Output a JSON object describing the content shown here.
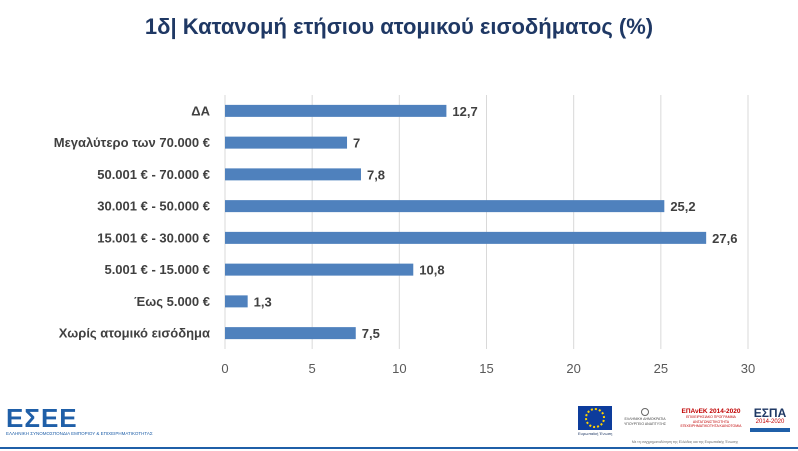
{
  "title": "1δ| Κατανομή ετήσιου ατομικού εισοδήματος (%)",
  "chart_data": {
    "type": "bar",
    "orientation": "horizontal",
    "categories": [
      "ΔΑ",
      "Μεγαλύτερο των 70.000 €",
      "50.001 € - 70.000 €",
      "30.001 € - 50.000 €",
      "15.001 € - 30.000 €",
      "5.001 € - 15.000 €",
      "Έως 5.000 €",
      "Χωρίς ατομικό εισόδημα"
    ],
    "values": [
      12.7,
      7,
      7.8,
      25.2,
      27.6,
      10.8,
      1.3,
      7.5
    ],
    "value_labels": [
      "12,7",
      "7",
      "7,8",
      "25,2",
      "27,6",
      "10,8",
      "1,3",
      "7,5"
    ],
    "xlim": [
      0,
      30
    ],
    "xticks": [
      "0",
      "5",
      "10",
      "15",
      "20",
      "25",
      "30"
    ],
    "grid": true,
    "bar_color": "#4f81bd"
  },
  "footer": {
    "logo": "ΕΣΕΕ",
    "logo_subtitle": "ΕΛΛΗΝΙΚΗ ΣΥΝΟΜΟΣΠΟΝΔΙΑ ΕΜΠΟΡΙΟΥ & ΕΠΙΧΕΙΡΗΜΑΤΙΚΟΤΗΤΑΣ",
    "eu_caption": "Ευρωπαϊκή Ένωση",
    "ministry": "ΕΛΛΗΝΙΚΗ ΔΗΜΟΚΡΑΤΙΑ ΥΠΟΥΡΓΕΙΟ ΑΝΑΠΤΥΞΗΣ",
    "epanek_title": "ΕΠΑνΕΚ 2014-2020",
    "epanek_sub": "ΕΠΙΧΕΙΡΗΣΙΑΚΟ ΠΡΟΓΡΑΜΜΑ ΑΝΤΑΓΩΝΙΣΤΙΚΟΤΗΤΑ ΕΠΙΧΕΙΡΗΜΑΤΙΚΟΤΗΤΑ ΚΑΙΝΟΤΟΜΙΑ",
    "espa_title": "ΕΣΠΑ",
    "espa_years": "2014-2020",
    "caption": "Με τη συγχρηματοδότηση της Ελλάδας και της Ευρωπαϊκής Ένωσης"
  }
}
